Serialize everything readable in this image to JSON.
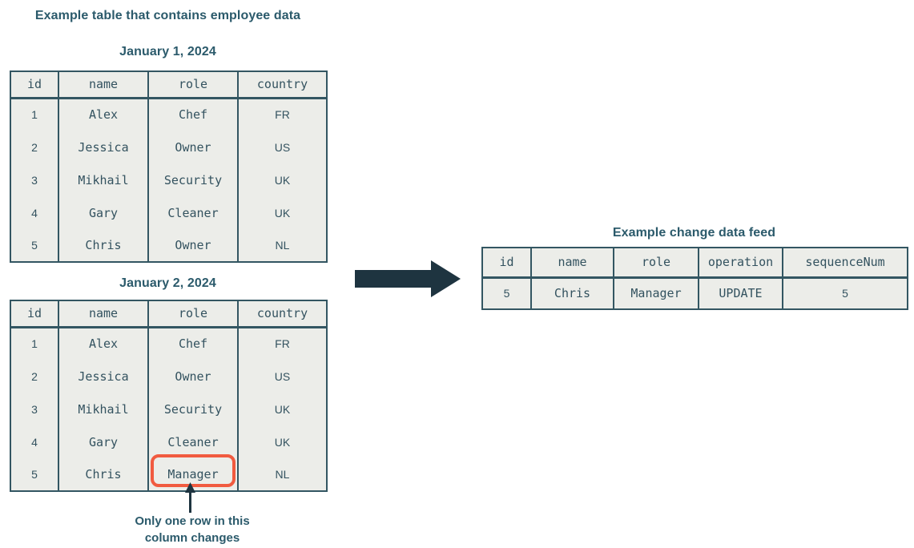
{
  "titles": {
    "main": "Example table that contains employee data"
  },
  "tables": {
    "jan1": {
      "title": "January 1, 2024",
      "headers": [
        "id",
        "name",
        "role",
        "country"
      ],
      "rows": [
        [
          "1",
          "Alex",
          "Chef",
          "FR"
        ],
        [
          "2",
          "Jessica",
          "Owner",
          "US"
        ],
        [
          "3",
          "Mikhail",
          "Security",
          "UK"
        ],
        [
          "4",
          "Gary",
          "Cleaner",
          "UK"
        ],
        [
          "5",
          "Chris",
          "Owner",
          "NL"
        ]
      ]
    },
    "jan2": {
      "title": "January 2, 2024",
      "headers": [
        "id",
        "name",
        "role",
        "country"
      ],
      "rows": [
        [
          "1",
          "Alex",
          "Chef",
          "FR"
        ],
        [
          "2",
          "Jessica",
          "Owner",
          "US"
        ],
        [
          "3",
          "Mikhail",
          "Security",
          "UK"
        ],
        [
          "4",
          "Gary",
          "Cleaner",
          "UK"
        ],
        [
          "5",
          "Chris",
          "Manager",
          "NL"
        ]
      ],
      "highlight": {
        "row": 4,
        "col": 2
      }
    },
    "feed": {
      "title": "Example change data feed",
      "headers": [
        "id",
        "name",
        "role",
        "operation",
        "sequenceNum"
      ],
      "rows": [
        [
          "5",
          "Chris",
          "Manager",
          "UPDATE",
          "5"
        ]
      ]
    }
  },
  "annotation": {
    "line1": "Only one row in this",
    "line2": "column changes"
  },
  "icons": {
    "right_arrow": "right-arrow-icon",
    "up_arrow": "up-arrow-icon"
  },
  "colors": {
    "heading": "#2b5a6b",
    "border": "#335662",
    "cell_bg": "#ecede9",
    "cell_text": "#33525f",
    "arrow": "#1e3440",
    "highlight": "#f15b40"
  }
}
